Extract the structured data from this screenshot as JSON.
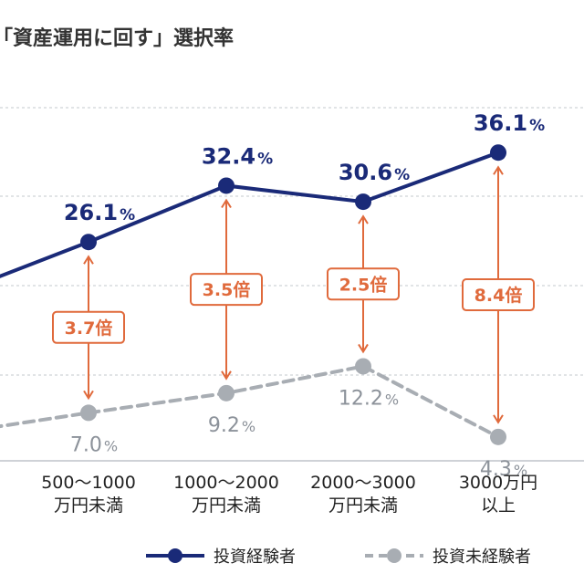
{
  "chart_data": {
    "type": "line",
    "title": "「資産運用に回す」選択率",
    "categories": [
      [
        "500〜1000",
        "万円未満"
      ],
      [
        "1000〜2000",
        "万円未満"
      ],
      [
        "2000〜3000",
        "万円未満"
      ],
      [
        "3000万円",
        "以上"
      ]
    ],
    "series": [
      {
        "name": "投資経験者",
        "values": [
          26.1,
          32.4,
          30.6,
          36.1
        ],
        "color": "#1a2a78",
        "style": "solid"
      },
      {
        "name": "投資未経験者",
        "values": [
          7.0,
          9.2,
          12.2,
          4.3
        ],
        "color": "#a8adb3",
        "style": "dashed"
      }
    ],
    "ratios": [
      "3.7倍",
      "3.5倍",
      "2.5倍",
      "8.4倍"
    ],
    "value_labels": {
      "experienced": [
        "26.1",
        "32.4",
        "30.6",
        "36.1"
      ],
      "inexperienced": [
        "7.0",
        "9.2",
        "12.2",
        "4.3"
      ]
    },
    "unit": "%",
    "ylim": [
      0,
      40
    ],
    "grid": true,
    "legend_position": "bottom-right",
    "ratio_color": "#e06a3c"
  }
}
